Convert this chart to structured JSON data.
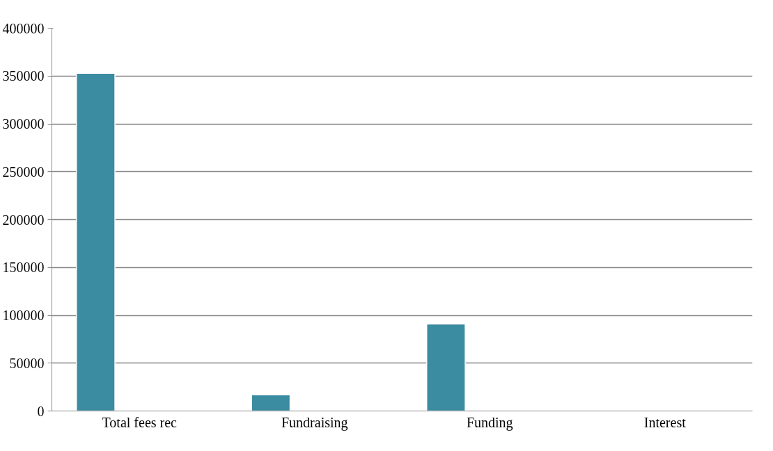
{
  "chart_data": {
    "type": "bar",
    "categories": [
      "Total fees rec",
      "Fundraising",
      "Funding",
      "Interest"
    ],
    "values": [
      353000,
      17000,
      91000,
      1000
    ],
    "color": "#3b8ba1",
    "ylim": [
      0,
      400000
    ],
    "yticks": [
      0,
      50000,
      100000,
      150000,
      200000,
      250000,
      300000,
      350000,
      400000
    ],
    "grid": "y"
  }
}
